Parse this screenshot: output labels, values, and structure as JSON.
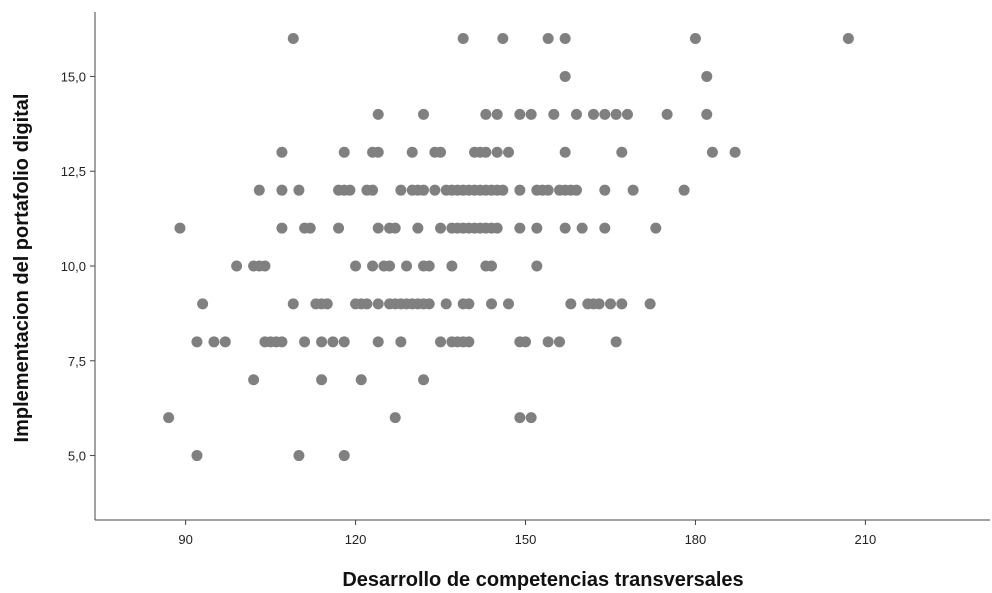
{
  "chart_data": {
    "type": "scatter",
    "title": "",
    "xlabel": "Desarrollo de competencias transversales",
    "ylabel": "Implementacion del portafolio digital",
    "xlim": [
      74,
      232
    ],
    "ylim": [
      3.3,
      16.7
    ],
    "x_ticks": [
      90,
      120,
      150,
      180,
      210
    ],
    "x_tick_labels": [
      "90",
      "120",
      "150",
      "180",
      "210"
    ],
    "y_ticks": [
      5,
      7.5,
      10,
      12.5,
      15
    ],
    "y_tick_labels": [
      "5,0",
      "7,5",
      "10,0",
      "12,5",
      "15,0"
    ],
    "grid": false,
    "marker_color": "#808080",
    "series": [
      {
        "points": [
          [
            87,
            6
          ],
          [
            92,
            5
          ],
          [
            89,
            11
          ],
          [
            92,
            8
          ],
          [
            93,
            9
          ],
          [
            95,
            8
          ],
          [
            97,
            8
          ],
          [
            99,
            10
          ],
          [
            102,
            10
          ],
          [
            102,
            7
          ],
          [
            103,
            10
          ],
          [
            103,
            12
          ],
          [
            104,
            10
          ],
          [
            104,
            8
          ],
          [
            105,
            8
          ],
          [
            106,
            8
          ],
          [
            107,
            8
          ],
          [
            107,
            13
          ],
          [
            107,
            12
          ],
          [
            107,
            11
          ],
          [
            109,
            16
          ],
          [
            109,
            9
          ],
          [
            110,
            12
          ],
          [
            110,
            5
          ],
          [
            111,
            8
          ],
          [
            111,
            11
          ],
          [
            112,
            11
          ],
          [
            113,
            9
          ],
          [
            114,
            9
          ],
          [
            114,
            7
          ],
          [
            114,
            8
          ],
          [
            115,
            9
          ],
          [
            116,
            8
          ],
          [
            117,
            11
          ],
          [
            117,
            12
          ],
          [
            118,
            13
          ],
          [
            118,
            12
          ],
          [
            118,
            8
          ],
          [
            118,
            5
          ],
          [
            119,
            12
          ],
          [
            120,
            10
          ],
          [
            120,
            9
          ],
          [
            121,
            9
          ],
          [
            121,
            7
          ],
          [
            122,
            12
          ],
          [
            122,
            9
          ],
          [
            123,
            13
          ],
          [
            123,
            12
          ],
          [
            123,
            10
          ],
          [
            124,
            14
          ],
          [
            124,
            13
          ],
          [
            124,
            9
          ],
          [
            124,
            11
          ],
          [
            124,
            8
          ],
          [
            125,
            10
          ],
          [
            126,
            11
          ],
          [
            126,
            10
          ],
          [
            126,
            9
          ],
          [
            127,
            9
          ],
          [
            127,
            11
          ],
          [
            127,
            6
          ],
          [
            128,
            12
          ],
          [
            128,
            9
          ],
          [
            128,
            8
          ],
          [
            129,
            10
          ],
          [
            129,
            9
          ],
          [
            130,
            13
          ],
          [
            130,
            12
          ],
          [
            130,
            9
          ],
          [
            131,
            11
          ],
          [
            131,
            9
          ],
          [
            131,
            12
          ],
          [
            132,
            14
          ],
          [
            132,
            12
          ],
          [
            132,
            10
          ],
          [
            132,
            9
          ],
          [
            132,
            7
          ],
          [
            133,
            10
          ],
          [
            133,
            9
          ],
          [
            134,
            12
          ],
          [
            134,
            13
          ],
          [
            135,
            13
          ],
          [
            135,
            11
          ],
          [
            135,
            8
          ],
          [
            136,
            12
          ],
          [
            136,
            9
          ],
          [
            137,
            12
          ],
          [
            137,
            10
          ],
          [
            137,
            11
          ],
          [
            137,
            8
          ],
          [
            138,
            12
          ],
          [
            138,
            11
          ],
          [
            138,
            8
          ],
          [
            139,
            16
          ],
          [
            139,
            12
          ],
          [
            139,
            11
          ],
          [
            139,
            9
          ],
          [
            139,
            8
          ],
          [
            140,
            12
          ],
          [
            140,
            9
          ],
          [
            140,
            11
          ],
          [
            140,
            8
          ],
          [
            141,
            13
          ],
          [
            141,
            12
          ],
          [
            141,
            11
          ],
          [
            142,
            13
          ],
          [
            142,
            12
          ],
          [
            142,
            11
          ],
          [
            143,
            14
          ],
          [
            143,
            13
          ],
          [
            143,
            12
          ],
          [
            143,
            11
          ],
          [
            143,
            10
          ],
          [
            144,
            12
          ],
          [
            144,
            11
          ],
          [
            144,
            10
          ],
          [
            144,
            9
          ],
          [
            145,
            14
          ],
          [
            145,
            13
          ],
          [
            145,
            12
          ],
          [
            145,
            11
          ],
          [
            146,
            16
          ],
          [
            146,
            12
          ],
          [
            147,
            13
          ],
          [
            147,
            9
          ],
          [
            149,
            14
          ],
          [
            149,
            12
          ],
          [
            149,
            11
          ],
          [
            149,
            8
          ],
          [
            149,
            6
          ],
          [
            150,
            8
          ],
          [
            151,
            14
          ],
          [
            151,
            6
          ],
          [
            152,
            12
          ],
          [
            152,
            11
          ],
          [
            152,
            10
          ],
          [
            153,
            12
          ],
          [
            154,
            12
          ],
          [
            154,
            8
          ],
          [
            154,
            16
          ],
          [
            155,
            14
          ],
          [
            156,
            12
          ],
          [
            156,
            8
          ],
          [
            157,
            16
          ],
          [
            157,
            15
          ],
          [
            157,
            13
          ],
          [
            157,
            12
          ],
          [
            157,
            11
          ],
          [
            158,
            12
          ],
          [
            158,
            9
          ],
          [
            159,
            14
          ],
          [
            159,
            12
          ],
          [
            160,
            11
          ],
          [
            161,
            9
          ],
          [
            162,
            9
          ],
          [
            162,
            14
          ],
          [
            163,
            9
          ],
          [
            164,
            14
          ],
          [
            164,
            12
          ],
          [
            164,
            11
          ],
          [
            165,
            9
          ],
          [
            166,
            14
          ],
          [
            166,
            8
          ],
          [
            167,
            13
          ],
          [
            167,
            9
          ],
          [
            168,
            14
          ],
          [
            169,
            12
          ],
          [
            172,
            9
          ],
          [
            173,
            11
          ],
          [
            175,
            14
          ],
          [
            178,
            12
          ],
          [
            180,
            16
          ],
          [
            182,
            15
          ],
          [
            182,
            14
          ],
          [
            183,
            13
          ],
          [
            187,
            13
          ],
          [
            207,
            16
          ]
        ]
      }
    ]
  }
}
